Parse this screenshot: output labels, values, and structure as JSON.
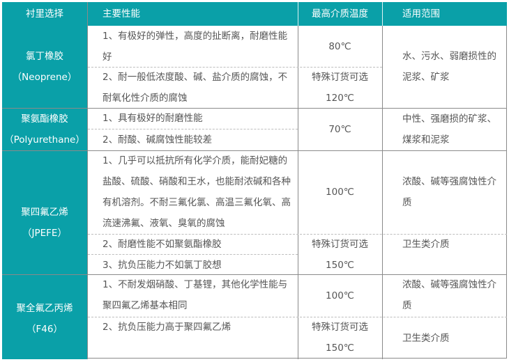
{
  "header": {
    "col1": "衬里选择",
    "col2": "主要性能",
    "col3": "最高介质温度",
    "col4": "适用范围"
  },
  "rows": [
    {
      "name": "氯丁橡胶",
      "code": "（Neoprene）",
      "perf": [
        "1、有极好的弹性，高度的扯断离，耐磨性能好",
        "2、耐一般低浓度酸、碱、盐介质的腐蚀，不耐氧化性介质的腐蚀"
      ],
      "temp": [
        "80℃",
        "特殊订货可选",
        "120℃"
      ],
      "scope": [
        "水、污水、弱磨损性的泥浆、矿浆"
      ]
    },
    {
      "name": "聚氨酯橡胶",
      "code": "（Polyurethane）",
      "perf": [
        "1、具有极好的耐磨性能",
        "2、耐酸、碱腐蚀性能较差"
      ],
      "temp": [
        "70℃"
      ],
      "scope": [
        "中性、强磨损的矿浆、煤浆和泥浆"
      ]
    },
    {
      "name": "聚四氟乙烯",
      "code": "（JPEFE）",
      "perf": [
        "1、几乎可以抵抗所有化学介质，能耐妃糖的盐酸、硫酸、硝酸和王水，也能耐浓碱和各种有机溶剂。不耐三氟化氯、高温三氟化氧、高流速沸氟、液氧、臭氧的腐蚀",
        "2、耐磨性能不如聚氨酯橡胶",
        "3、抗负压能力不如氯丁胶想"
      ],
      "temp": [
        "100℃",
        "特殊订货可选",
        "150℃"
      ],
      "scope": [
        "浓酸、碱等强腐蚀性介质",
        "卫生类介质"
      ]
    },
    {
      "name": "聚全氟乙丙烯",
      "code": "（F46）",
      "perf": [
        "1、不耐发烟硝酸、丁基锂，其他化学性能与聚四氟乙烯基本相同",
        "2、抗负压能力高于聚四氟乙烯"
      ],
      "temp": [
        "100℃",
        "特殊订货可选",
        "150℃"
      ],
      "scope": [
        "浓酸、碱等强腐蚀性介质",
        "卫生类介质"
      ]
    }
  ],
  "colors": {
    "header_bg": "#0aa0a8",
    "text": "#555555"
  }
}
